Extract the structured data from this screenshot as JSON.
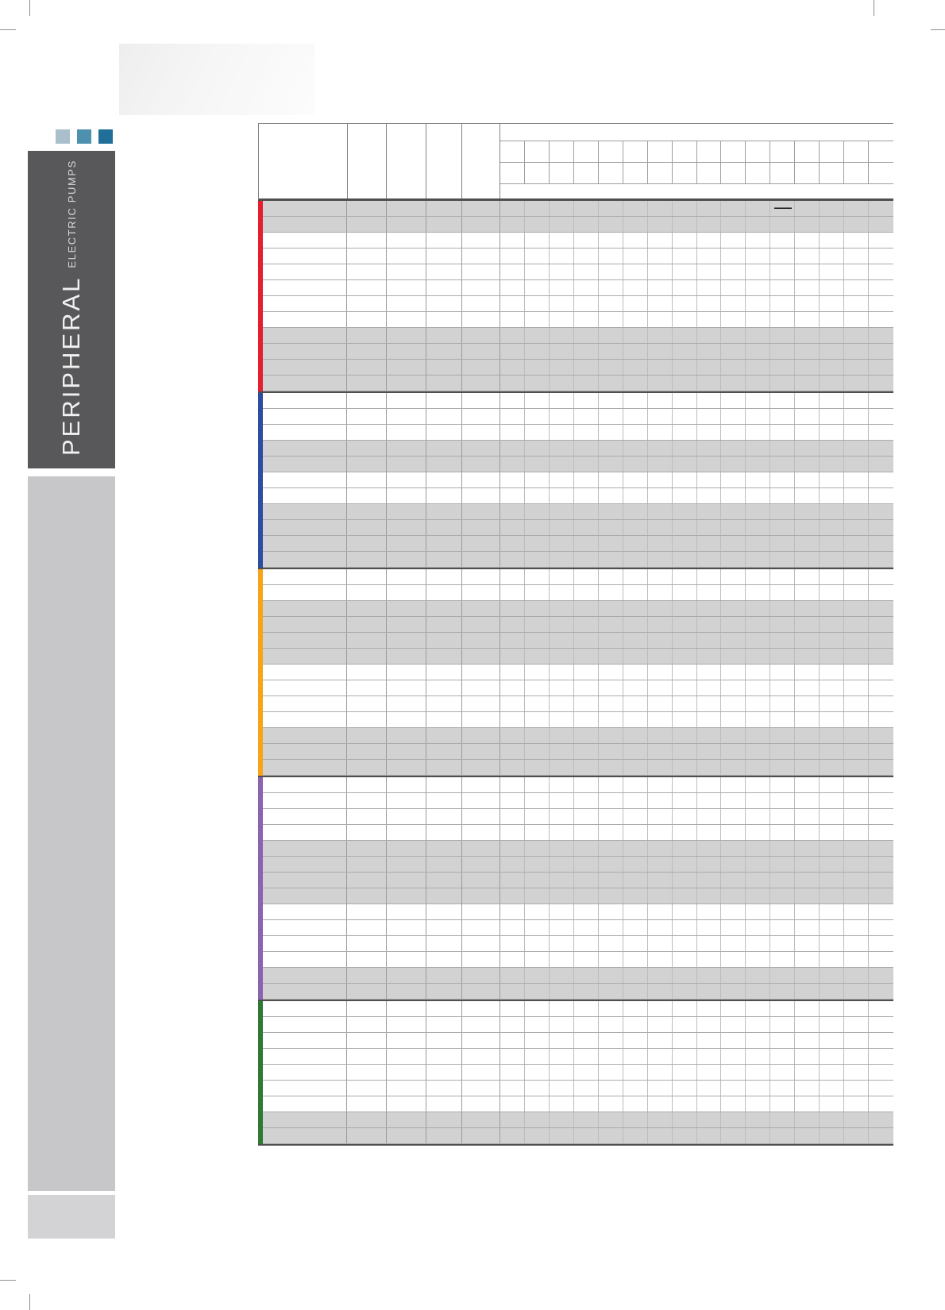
{
  "sidebar": {
    "title": "PERIPHERAL",
    "subtitle": "ELECTRIC PUMPS",
    "squares": [
      "#a9bfcb",
      "#4e91ae",
      "#1f6f99"
    ]
  },
  "table": {
    "header": {
      "narrow_columns": 16,
      "narrow_rows": 2
    },
    "row_gray": "#d2d2d2",
    "annotation_dash": "—",
    "groups": [
      {
        "name": "series-group-red",
        "color": "#e51f2f",
        "rows": "ggwwwwwwgggg"
      },
      {
        "name": "series-group-blue",
        "color": "#2c4da0",
        "rows": "wwwggwwgggg"
      },
      {
        "name": "series-group-orange",
        "color": "#f6a419",
        "rows": "wwggggwwwwggg"
      },
      {
        "name": "series-group-purple",
        "color": "#8c63ae",
        "rows": "wwwwggggwwwwgg"
      },
      {
        "name": "series-group-green",
        "color": "#2f7a33",
        "rows": "wwwwwwwgg"
      }
    ]
  }
}
